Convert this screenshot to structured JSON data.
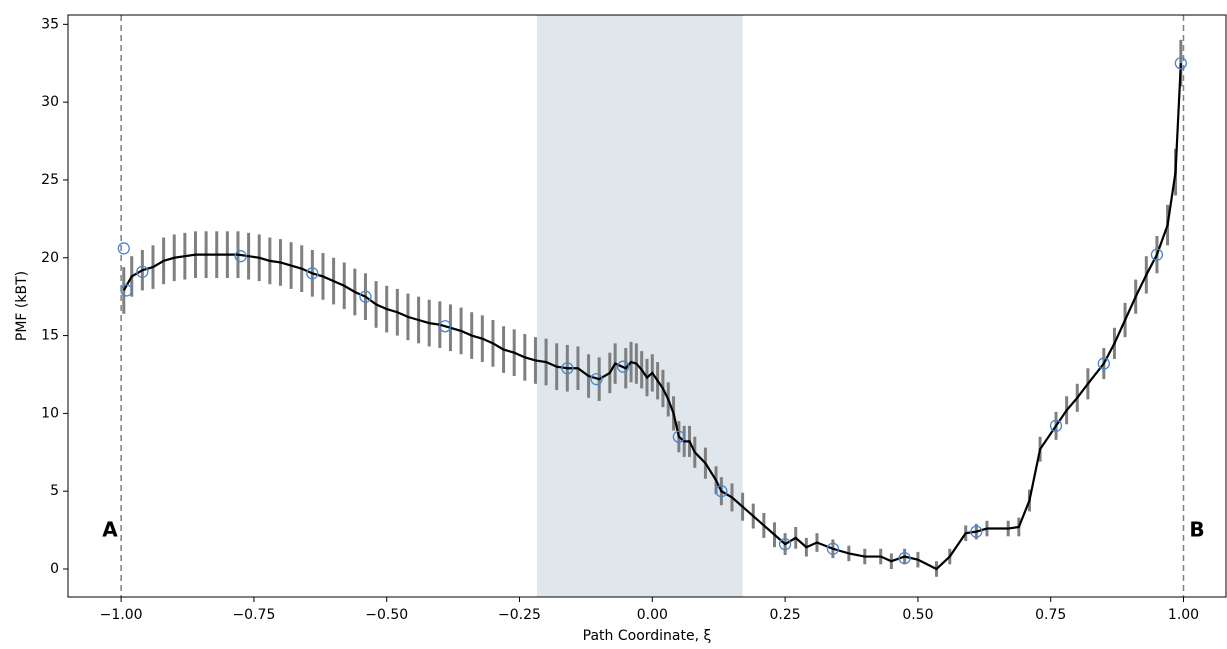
{
  "chart_data": {
    "type": "line",
    "xlabel": "Path Coordinate, ξ",
    "ylabel": "PMF (kBT)",
    "xlim": [
      -1.1,
      1.08
    ],
    "ylim": [
      -1.8,
      35.6
    ],
    "xticks": [
      {
        "value": -1,
        "label": "−1.00"
      },
      {
        "value": -0.75,
        "label": "−0.75"
      },
      {
        "value": -0.5,
        "label": "−0.50"
      },
      {
        "value": -0.25,
        "label": "−0.25"
      },
      {
        "value": 0,
        "label": "0.00"
      },
      {
        "value": 0.25,
        "label": "0.25"
      },
      {
        "value": 0.5,
        "label": "0.50"
      },
      {
        "value": 0.75,
        "label": "0.75"
      },
      {
        "value": 1,
        "label": "1.00"
      }
    ],
    "yticks": [
      0,
      5,
      10,
      15,
      20,
      25,
      30,
      35
    ],
    "span": [
      -0.217,
      0.17
    ],
    "span_color": "#dfe6ec",
    "vlines": [
      -1,
      1
    ],
    "annotations": [
      "A",
      "B"
    ],
    "x": [
      -0.995,
      -0.98,
      -0.96,
      -0.94,
      -0.92,
      -0.9,
      -0.88,
      -0.86,
      -0.84,
      -0.82,
      -0.8,
      -0.78,
      -0.76,
      -0.74,
      -0.72,
      -0.7,
      -0.68,
      -0.66,
      -0.64,
      -0.62,
      -0.6,
      -0.58,
      -0.56,
      -0.54,
      -0.52,
      -0.5,
      -0.48,
      -0.46,
      -0.44,
      -0.42,
      -0.4,
      -0.38,
      -0.36,
      -0.34,
      -0.32,
      -0.3,
      -0.28,
      -0.26,
      -0.24,
      -0.22,
      -0.2,
      -0.18,
      -0.16,
      -0.14,
      -0.12,
      -0.1,
      -0.08,
      -0.07,
      -0.05,
      -0.04,
      -0.03,
      -0.02,
      -0.01,
      0,
      0.01,
      0.02,
      0.03,
      0.04,
      0.05,
      0.06,
      0.07,
      0.08,
      0.1,
      0.12,
      0.13,
      0.15,
      0.17,
      0.19,
      0.21,
      0.23,
      0.25,
      0.27,
      0.29,
      0.31,
      0.34,
      0.37,
      0.4,
      0.43,
      0.45,
      0.475,
      0.5,
      0.535,
      0.56,
      0.59,
      0.61,
      0.63,
      0.67,
      0.69,
      0.71,
      0.73,
      0.76,
      0.78,
      0.8,
      0.82,
      0.85,
      0.87,
      0.89,
      0.91,
      0.93,
      0.95,
      0.97,
      0.985,
      0.995
    ],
    "series": [
      {
        "color": "#000000",
        "error_color": "#7f7f7f",
        "values": [
          17.9,
          18.8,
          19.2,
          19.4,
          19.8,
          20.0,
          20.1,
          20.2,
          20.2,
          20.2,
          20.2,
          20.2,
          20.1,
          20.0,
          19.8,
          19.7,
          19.5,
          19.3,
          19.0,
          18.8,
          18.5,
          18.2,
          17.8,
          17.5,
          17.0,
          16.7,
          16.5,
          16.2,
          16.0,
          15.8,
          15.7,
          15.5,
          15.3,
          15.0,
          14.8,
          14.5,
          14.1,
          13.9,
          13.6,
          13.4,
          13.3,
          13.0,
          12.9,
          12.9,
          12.4,
          12.2,
          12.6,
          13.2,
          12.9,
          13.3,
          13.2,
          12.8,
          12.3,
          12.6,
          12.1,
          11.6,
          10.9,
          10.0,
          8.5,
          8.2,
          8.2,
          7.5,
          6.8,
          5.7,
          5.0,
          4.6,
          4.0,
          3.4,
          2.8,
          2.2,
          1.6,
          2.0,
          1.4,
          1.7,
          1.3,
          1.0,
          0.8,
          0.8,
          0.5,
          0.8,
          0.6,
          0.0,
          0.8,
          2.3,
          2.4,
          2.6,
          2.6,
          2.7,
          4.4,
          7.7,
          9.2,
          10.2,
          11.0,
          11.9,
          13.2,
          14.5,
          16.0,
          17.5,
          18.9,
          20.2,
          22.1,
          25.5,
          32.5
        ],
        "errors": [
          1.5,
          1.3,
          1.3,
          1.4,
          1.5,
          1.5,
          1.5,
          1.5,
          1.5,
          1.5,
          1.5,
          1.5,
          1.5,
          1.5,
          1.5,
          1.5,
          1.5,
          1.5,
          1.5,
          1.5,
          1.5,
          1.5,
          1.5,
          1.5,
          1.5,
          1.5,
          1.5,
          1.5,
          1.5,
          1.5,
          1.5,
          1.5,
          1.5,
          1.5,
          1.5,
          1.5,
          1.5,
          1.5,
          1.5,
          1.5,
          1.5,
          1.5,
          1.5,
          1.4,
          1.4,
          1.4,
          1.3,
          1.3,
          1.3,
          1.3,
          1.3,
          1.2,
          1.2,
          1.2,
          1.2,
          1.2,
          1.1,
          1.1,
          1.0,
          1.0,
          1.0,
          1.0,
          1.0,
          0.9,
          0.9,
          0.9,
          0.9,
          0.8,
          0.8,
          0.8,
          0.7,
          0.7,
          0.6,
          0.6,
          0.6,
          0.5,
          0.5,
          0.5,
          0.5,
          0.5,
          0.5,
          0.5,
          0.5,
          0.5,
          0.5,
          0.5,
          0.5,
          0.6,
          0.7,
          0.8,
          0.9,
          0.9,
          0.9,
          1.0,
          1.0,
          1.0,
          1.1,
          1.1,
          1.2,
          1.2,
          1.3,
          1.5,
          1.5
        ]
      }
    ],
    "markers": {
      "color": "#4a86d0",
      "x": [
        -0.995,
        -0.99,
        -0.96,
        -0.775,
        -0.64,
        -0.54,
        -0.39,
        -0.16,
        -0.105,
        -0.055,
        0.05,
        0.13,
        0.25,
        0.34,
        0.475,
        0.61,
        0.76,
        0.85,
        0.95,
        0.995
      ],
      "values": [
        20.6,
        17.9,
        19.1,
        20.1,
        19.0,
        17.5,
        15.6,
        12.9,
        12.2,
        13.0,
        8.5,
        5.0,
        1.6,
        1.3,
        0.7,
        2.4,
        9.2,
        13.2,
        20.2,
        32.5
      ]
    }
  }
}
